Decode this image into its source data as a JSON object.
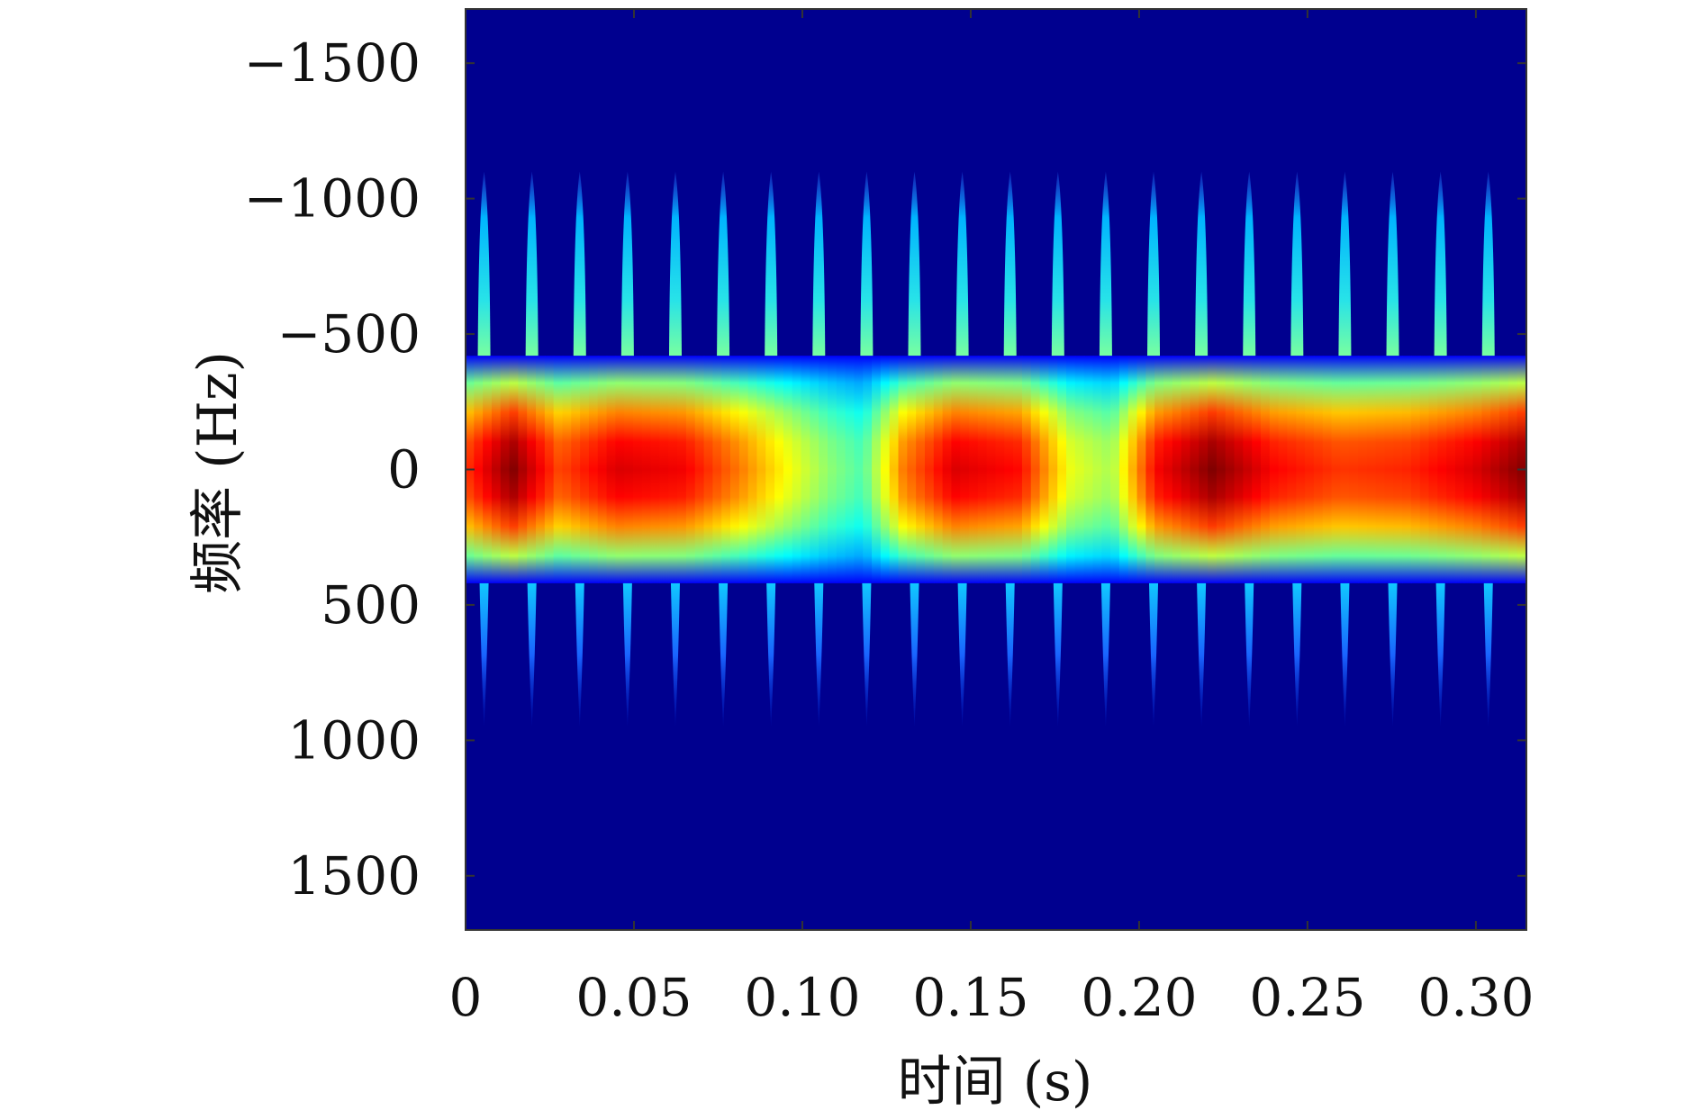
{
  "chart_data": {
    "type": "heatmap",
    "title": "",
    "xlabel": "时间 (s)",
    "ylabel": "频率 (Hz)",
    "xlim": [
      0,
      0.315
    ],
    "ylim": [
      -1700,
      1700
    ],
    "y_axis_reversed": true,
    "colormap": "jet",
    "background_color": "#00008f",
    "x_ticks": [
      {
        "value": 0,
        "label": "0"
      },
      {
        "value": 0.05,
        "label": "0.05"
      },
      {
        "value": 0.1,
        "label": "0.10"
      },
      {
        "value": 0.15,
        "label": "0.15"
      },
      {
        "value": 0.2,
        "label": "0.20"
      },
      {
        "value": 0.25,
        "label": "0.25"
      },
      {
        "value": 0.3,
        "label": "0.30"
      }
    ],
    "y_ticks": [
      {
        "value": -1500,
        "label": "−1500"
      },
      {
        "value": -1000,
        "label": "−1000"
      },
      {
        "value": -500,
        "label": "−500"
      },
      {
        "value": 0,
        "label": "0"
      },
      {
        "value": 500,
        "label": "500"
      },
      {
        "value": 1000,
        "label": "1000"
      },
      {
        "value": 1500,
        "label": "1500"
      }
    ],
    "central_band": {
      "center_frequency": 0,
      "half_width_hz": 420,
      "intensity_over_time": [
        {
          "t": 0.0,
          "level": 0.8
        },
        {
          "t": 0.014,
          "level": 1.0
        },
        {
          "t": 0.028,
          "level": 0.78
        },
        {
          "t": 0.045,
          "level": 0.9
        },
        {
          "t": 0.065,
          "level": 0.87
        },
        {
          "t": 0.082,
          "level": 0.72
        },
        {
          "t": 0.095,
          "level": 0.58
        },
        {
          "t": 0.108,
          "level": 0.45
        },
        {
          "t": 0.118,
          "level": 0.38
        },
        {
          "t": 0.13,
          "level": 0.72
        },
        {
          "t": 0.145,
          "level": 0.9
        },
        {
          "t": 0.165,
          "level": 0.85
        },
        {
          "t": 0.18,
          "level": 0.55
        },
        {
          "t": 0.192,
          "level": 0.48
        },
        {
          "t": 0.205,
          "level": 0.86
        },
        {
          "t": 0.222,
          "level": 1.0
        },
        {
          "t": 0.24,
          "level": 0.86
        },
        {
          "t": 0.26,
          "level": 0.8
        },
        {
          "t": 0.28,
          "level": 0.82
        },
        {
          "t": 0.3,
          "level": 0.9
        },
        {
          "t": 0.315,
          "level": 1.0
        }
      ]
    },
    "harmonic_spikes": {
      "times": [
        0.0055,
        0.0197,
        0.0339,
        0.0481,
        0.0623,
        0.0765,
        0.0907,
        0.1049,
        0.1191,
        0.1333,
        0.1475,
        0.1617,
        0.1759,
        0.1901,
        0.2043,
        0.2185,
        0.2327,
        0.2469,
        0.2611,
        0.2753,
        0.2895,
        0.3037
      ],
      "upper_extent_hz": -1100,
      "lower_extent_hz": 950
    }
  }
}
